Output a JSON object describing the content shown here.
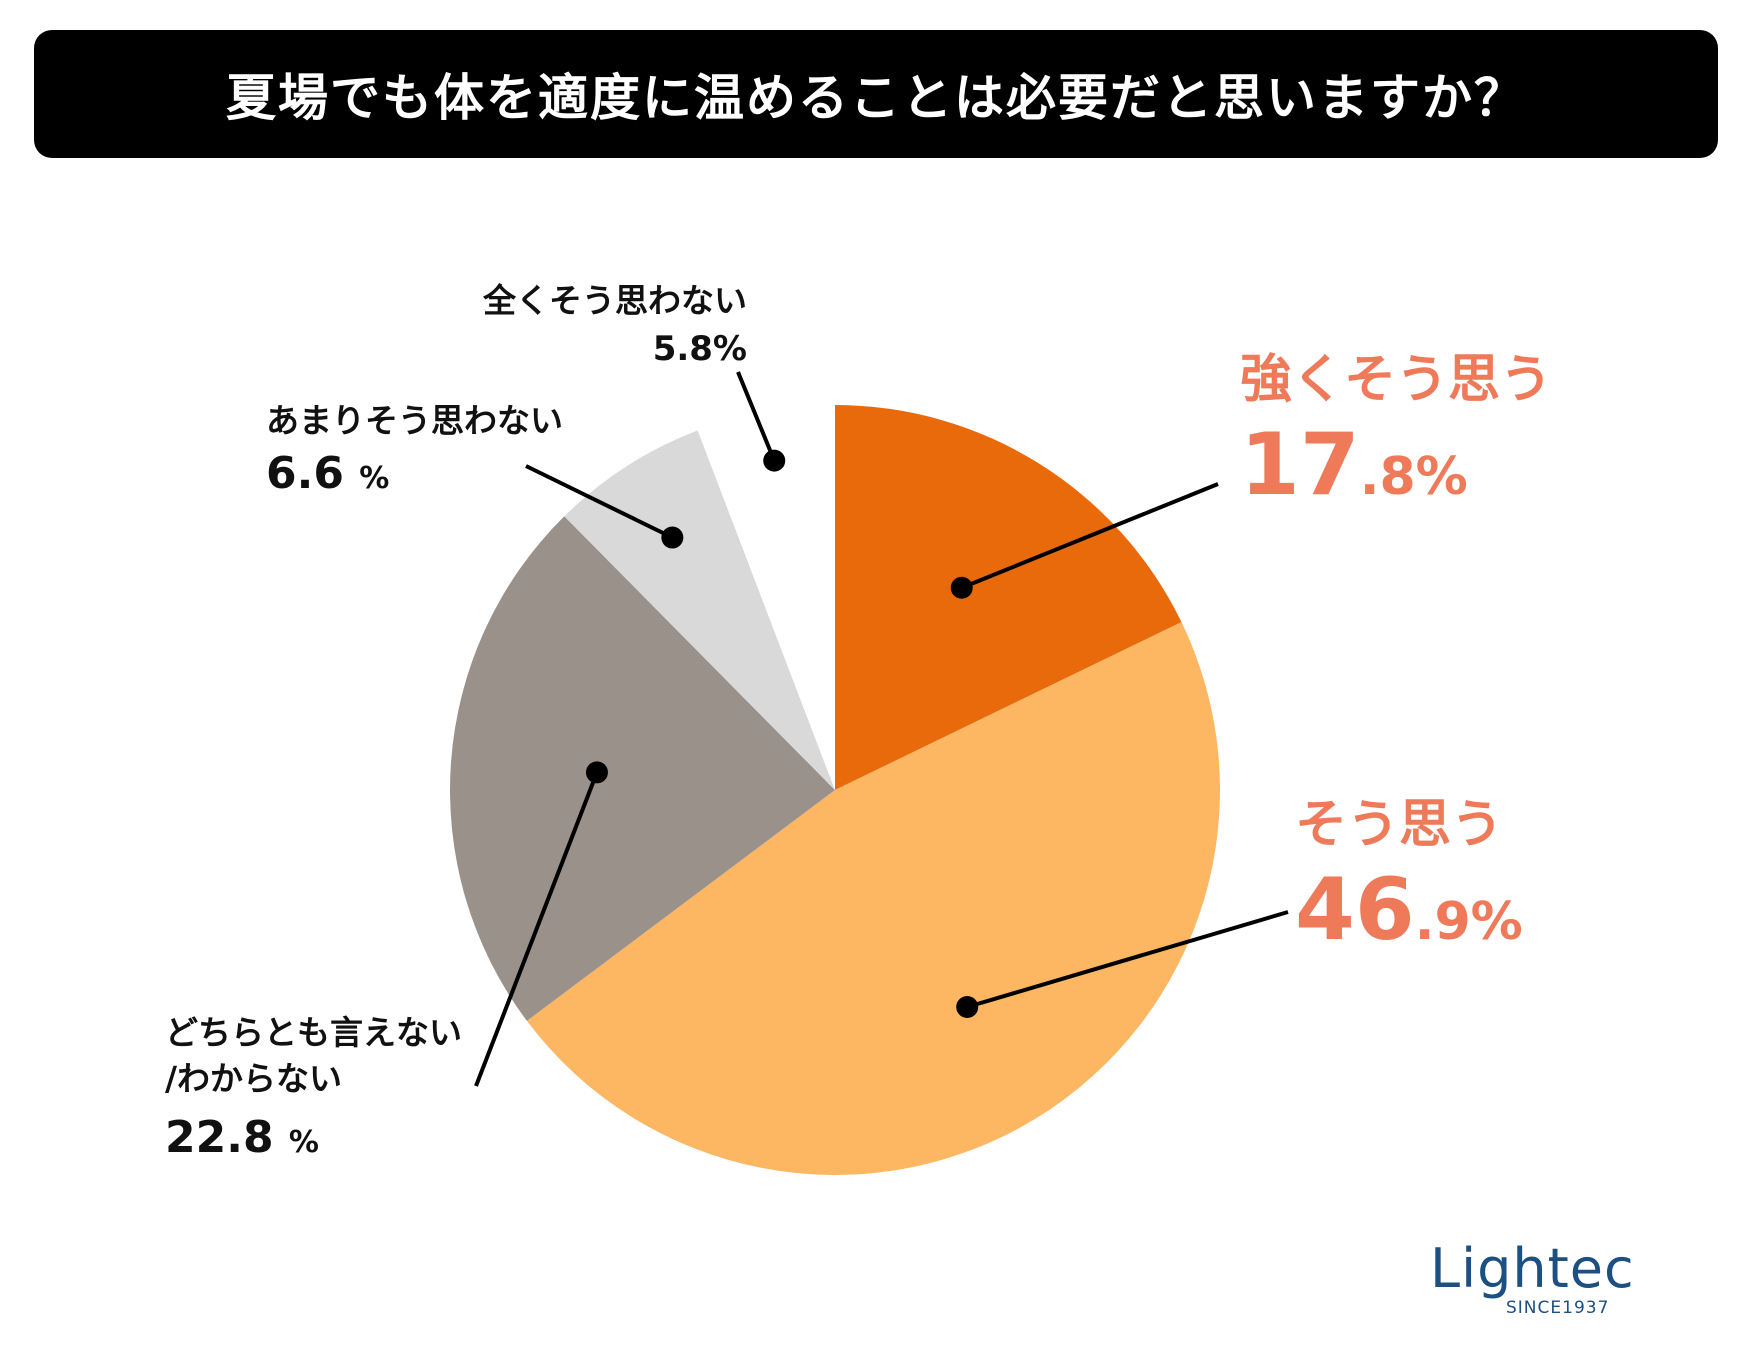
{
  "title": "夏場でも体を適度に温めることは必要だと思いますか？",
  "chart_data": {
    "type": "pie",
    "title": "夏場でも体を適度に温めることは必要だと思いますか？",
    "slices": [
      {
        "name": "強くそう思う",
        "value": 17.8,
        "int": "17",
        "dec": ".8%",
        "color": "#e86a0a"
      },
      {
        "name": "そう思う",
        "value": 46.9,
        "int": "46",
        "dec": ".9%",
        "color": "#fdb662"
      },
      {
        "name": "どちらとも言えない\n/わからない",
        "value": 22.8,
        "int": "22.8",
        "dec": "%",
        "color": "#9a918b"
      },
      {
        "name": "あまりそう思わない",
        "value": 6.6,
        "int": "6.6",
        "dec": "%",
        "color": "#d9d9d9"
      },
      {
        "name": "全くそう思わない",
        "value": 5.8,
        "int": "5.8",
        "dec": "%",
        "color": "#ffffff"
      }
    ]
  },
  "logo": {
    "word": "Lightec",
    "sub": "SINCE1937"
  }
}
